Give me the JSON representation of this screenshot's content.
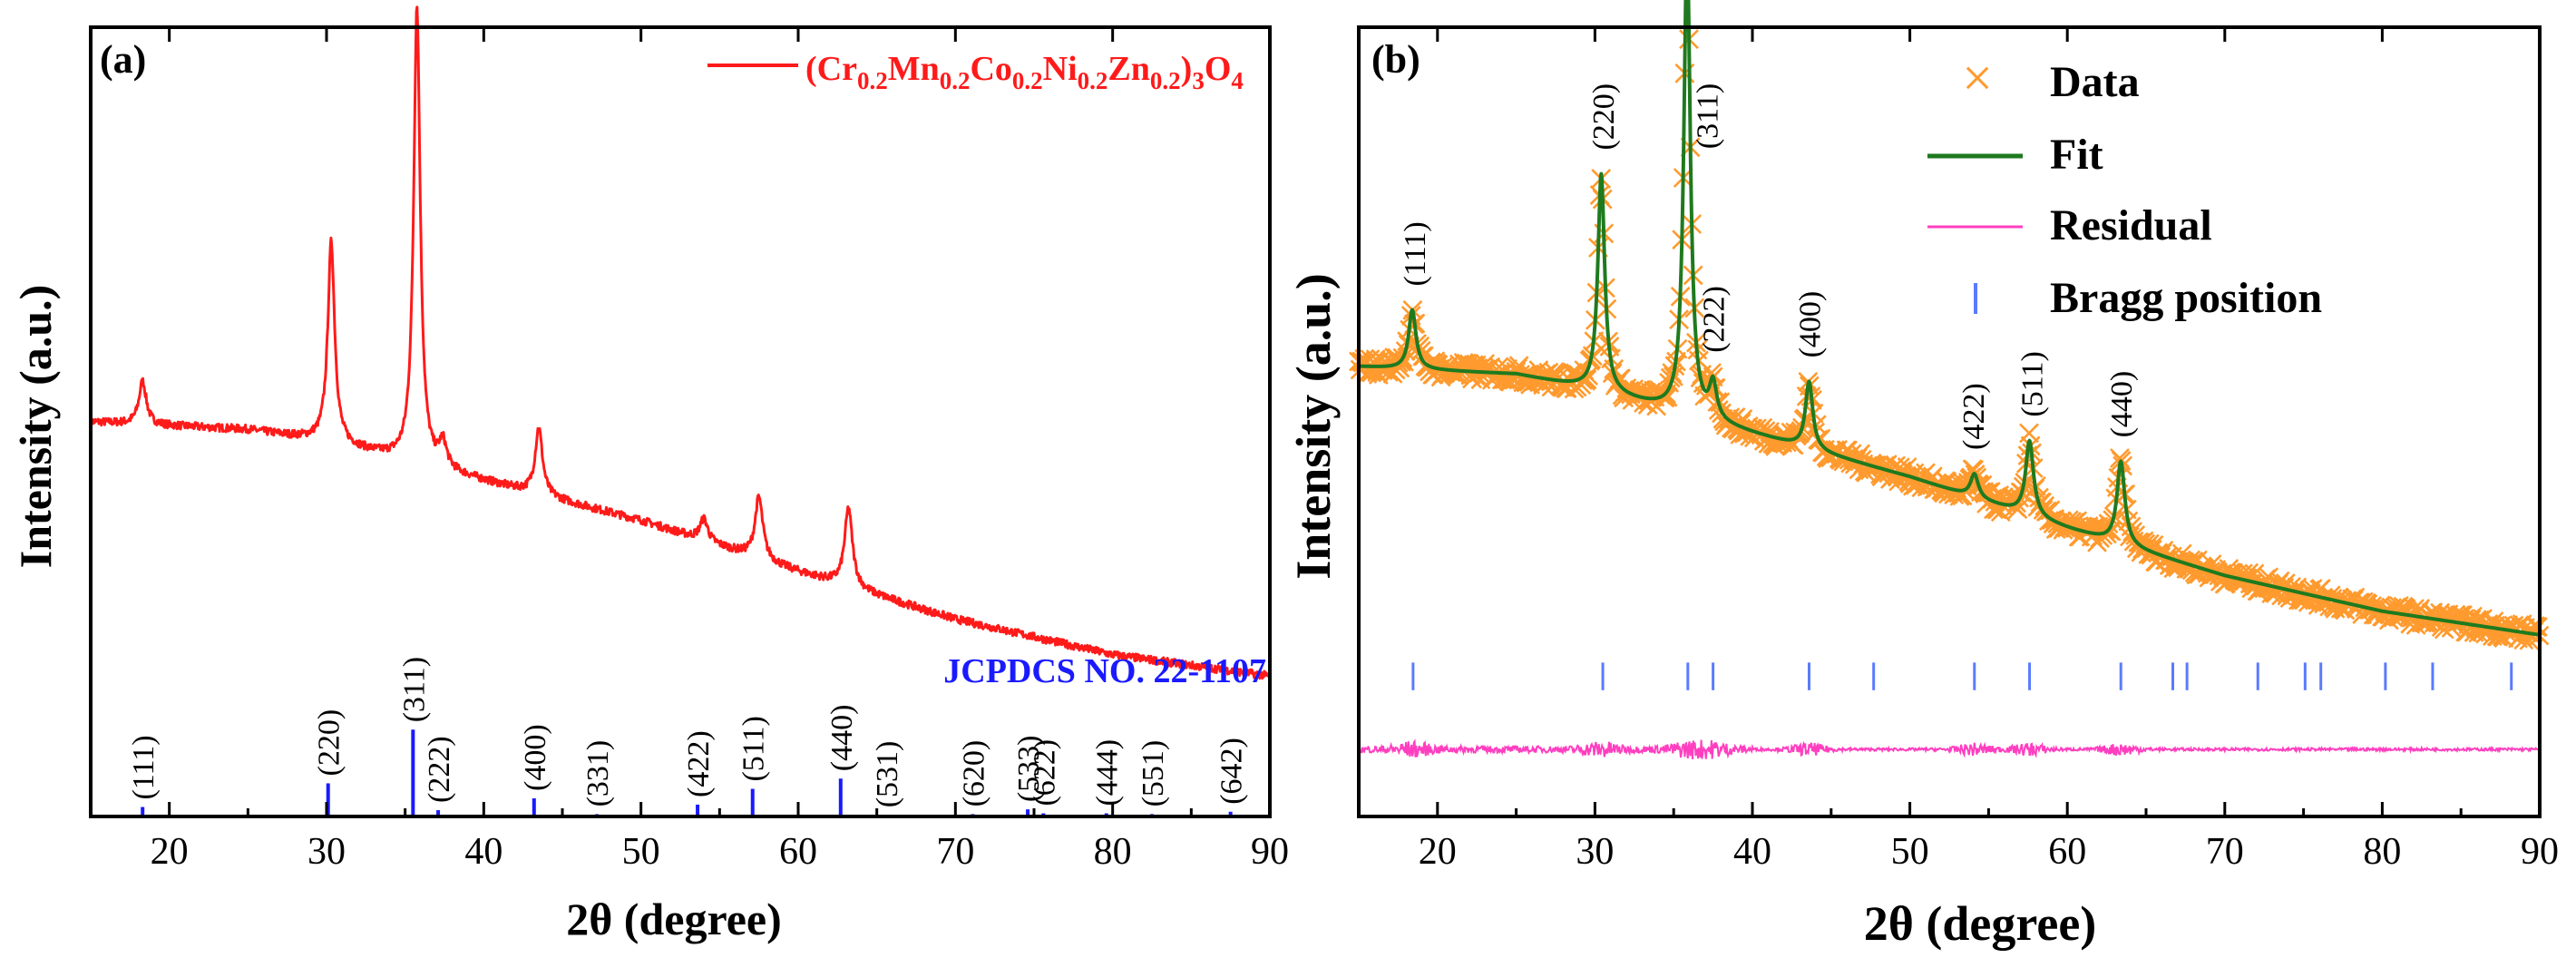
{
  "colors": {
    "panel_a_line": "#ff1a1a",
    "reference_sticks": "#1a1aff",
    "data_markers": "#ff9a2e",
    "fit_line": "#1f7a1f",
    "residual": "#ff3fbf",
    "bragg_ticks": "#5a7bff",
    "axis": "#000000"
  },
  "chart_data": [
    {
      "type": "line",
      "panel_label": "(a)",
      "xlabel": "2θ (degree)",
      "ylabel": "Intensity (a.u.)",
      "xlim": [
        15,
        90
      ],
      "ylim": [
        0,
        100
      ],
      "x_ticks": [
        "20",
        "30",
        "40",
        "50",
        "60",
        "70",
        "80",
        "90"
      ],
      "legend": {
        "parts": [
          {
            "t": "(Cr",
            "sub": false
          },
          {
            "t": "0.2",
            "sub": true
          },
          {
            "t": "Mn",
            "sub": false
          },
          {
            "t": "0.2",
            "sub": true
          },
          {
            "t": "Co",
            "sub": false
          },
          {
            "t": "0.2",
            "sub": true
          },
          {
            "t": "Ni",
            "sub": false
          },
          {
            "t": "0.2",
            "sub": true
          },
          {
            "t": "Zn",
            "sub": false
          },
          {
            "t": "0.2",
            "sub": true
          },
          {
            "t": ")",
            "sub": false
          },
          {
            "t": "3",
            "sub": true
          },
          {
            "t": "O",
            "sub": false
          },
          {
            "t": "4",
            "sub": true
          }
        ]
      },
      "pattern": {
        "background": [
          [
            15,
            50
          ],
          [
            20,
            49.5
          ],
          [
            25,
            49
          ],
          [
            30,
            47.5
          ],
          [
            40,
            42.5
          ],
          [
            50,
            37.5
          ],
          [
            60,
            31
          ],
          [
            70,
            25
          ],
          [
            80,
            20.5
          ],
          [
            90,
            17.8
          ]
        ],
        "peaks": [
          {
            "pos": 18.3,
            "height": 5.5,
            "width": 0.28
          },
          {
            "pos": 30.3,
            "height": 25.5,
            "width": 0.26
          },
          {
            "pos": 35.75,
            "height": 58,
            "width": 0.25
          },
          {
            "pos": 37.4,
            "height": 3.2,
            "width": 0.28
          },
          {
            "pos": 43.5,
            "height": 8.5,
            "width": 0.28
          },
          {
            "pos": 54.0,
            "height": 2.8,
            "width": 0.3
          },
          {
            "pos": 57.5,
            "height": 7.8,
            "width": 0.3
          },
          {
            "pos": 63.2,
            "height": 10.0,
            "width": 0.3
          }
        ]
      },
      "reference": {
        "label": "JCPDCS NO. 22-1107",
        "sticks": [
          {
            "pos": 18.3,
            "height": 1.2,
            "hkl": "(111)"
          },
          {
            "pos": 30.1,
            "height": 4.2,
            "hkl": "(220)"
          },
          {
            "pos": 35.5,
            "height": 11.0,
            "hkl": "(311)"
          },
          {
            "pos": 37.1,
            "height": 0.8,
            "hkl": "(222)"
          },
          {
            "pos": 43.2,
            "height": 2.3,
            "hkl": "(400)"
          },
          {
            "pos": 47.2,
            "height": 0.3,
            "hkl": "(331)"
          },
          {
            "pos": 53.6,
            "height": 1.5,
            "hkl": "(422)"
          },
          {
            "pos": 57.1,
            "height": 3.5,
            "hkl": "(511)"
          },
          {
            "pos": 62.7,
            "height": 4.8,
            "hkl": "(440)"
          },
          {
            "pos": 65.6,
            "height": 0.2,
            "hkl": "(531)"
          },
          {
            "pos": 71.1,
            "height": 0.3,
            "hkl": "(620)"
          },
          {
            "pos": 74.6,
            "height": 0.9,
            "hkl": "(533)"
          },
          {
            "pos": 75.6,
            "height": 0.4,
            "hkl": "(622)"
          },
          {
            "pos": 79.6,
            "height": 0.4,
            "hkl": "(444)"
          },
          {
            "pos": 82.5,
            "height": 0.3,
            "hkl": "(551)"
          },
          {
            "pos": 87.5,
            "height": 0.6,
            "hkl": "(642)"
          }
        ]
      }
    },
    {
      "type": "scatter",
      "panel_label": "(b)",
      "xlabel": "2θ (degree)",
      "ylabel": "Intensity (a.u.)",
      "xlim": [
        15,
        90
      ],
      "ylim": [
        0,
        100
      ],
      "x_ticks": [
        "20",
        "30",
        "40",
        "50",
        "60",
        "70",
        "80",
        "90"
      ],
      "legend": {
        "data": "Data",
        "fit": "Fit",
        "residual": "Residual",
        "bragg": "Bragg position",
        "data_marker": "×"
      },
      "pattern": {
        "background": [
          [
            15,
            57
          ],
          [
            20,
            56.5
          ],
          [
            25,
            56
          ],
          [
            30,
            54
          ],
          [
            40,
            48.5
          ],
          [
            50,
            43
          ],
          [
            60,
            36.5
          ],
          [
            70,
            30.5
          ],
          [
            80,
            26
          ],
          [
            90,
            23
          ]
        ],
        "peaks": [
          {
            "pos": 18.4,
            "height": 7.5,
            "width": 0.28
          },
          {
            "pos": 30.4,
            "height": 27.5,
            "width": 0.26
          },
          {
            "pos": 35.85,
            "height": 59,
            "width": 0.25
          },
          {
            "pos": 37.5,
            "height": 4.5,
            "width": 0.28
          },
          {
            "pos": 43.6,
            "height": 8.5,
            "width": 0.28
          },
          {
            "pos": 54.1,
            "height": 3.0,
            "width": 0.3
          },
          {
            "pos": 57.6,
            "height": 9.5,
            "width": 0.3
          },
          {
            "pos": 63.4,
            "height": 10.5,
            "width": 0.3
          }
        ]
      },
      "peak_labels": [
        {
          "pos": 18.5,
          "hkl": "(111)"
        },
        {
          "pos": 30.5,
          "hkl": "(220)"
        },
        {
          "pos": 37.5,
          "hkl": "(222)"
        },
        {
          "pos": 43.6,
          "hkl": "(400)"
        },
        {
          "pos": 54.0,
          "hkl": "(422)"
        },
        {
          "pos": 57.7,
          "hkl": "(511)"
        },
        {
          "pos": 63.4,
          "hkl": "(440)"
        },
        {
          "pos": 37.1,
          "hkl": "(311)"
        }
      ],
      "bragg_positions": [
        18.45,
        30.5,
        35.9,
        37.5,
        43.6,
        47.7,
        54.1,
        57.6,
        63.4,
        66.7,
        67.6,
        72.1,
        75.1,
        76.1,
        80.2,
        83.2,
        88.2
      ],
      "residual_level": 8.5
    }
  ]
}
